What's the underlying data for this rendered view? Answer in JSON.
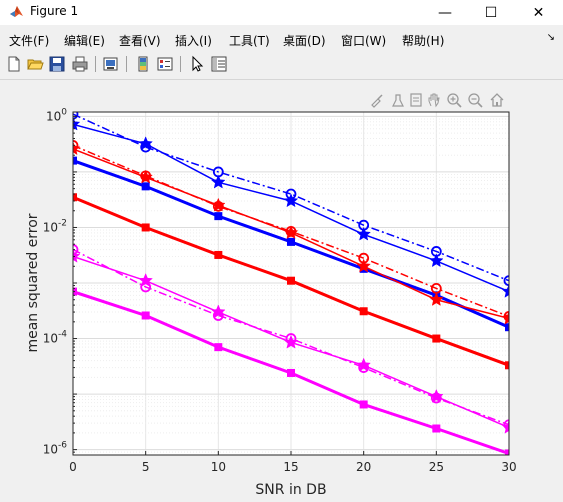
{
  "window": {
    "title": "Figure 1",
    "minimize": "—",
    "maximize": "☐",
    "close": "✕"
  },
  "menu": {
    "items": [
      "文件(F)",
      "编辑(E)",
      "查看(V)",
      "插入(I)",
      "工具(T)",
      "桌面(D)",
      "窗口(W)",
      "帮助(H)"
    ]
  },
  "toolbar": {
    "icons": [
      "new-figure-icon",
      "open-file-icon",
      "save-icon",
      "print-icon",
      "link-plot-icon",
      "colorbar-icon",
      "legend-icon",
      "pointer-icon",
      "property-inspector-icon"
    ]
  },
  "axes_toolbar": {
    "icons": [
      "brush-icon",
      "data-tips-icon",
      "export-icon",
      "pan-icon",
      "zoom-in-icon",
      "zoom-out-icon",
      "home-icon"
    ]
  },
  "colors": {
    "blue": "#0000ff",
    "red": "#ff0000",
    "magenta": "#ff00ff",
    "grid": "#e6e6e6",
    "axis": "#262626"
  },
  "chart_data": {
    "type": "line",
    "xlabel": "SNR in DB",
    "ylabel": "mean squared error",
    "x": [
      0,
      5,
      10,
      15,
      20,
      25,
      30
    ],
    "xticks": [
      "0",
      "5",
      "10",
      "15",
      "20",
      "25",
      "30"
    ],
    "xlim": [
      0,
      30
    ],
    "ylim": [
      8e-07,
      1.2
    ],
    "yscale": "log",
    "yticks": [
      {
        "value": 1,
        "base": "10",
        "exp": "0"
      },
      {
        "value": 0.01,
        "base": "10",
        "exp": "-2"
      },
      {
        "value": 0.0001,
        "base": "10",
        "exp": "-4"
      },
      {
        "value": 1e-06,
        "base": "10",
        "exp": "-6"
      }
    ],
    "grid": true,
    "series": [
      {
        "color": "#0000ff",
        "marker": "circle",
        "dash": "dashdot",
        "width": 1.5,
        "values": [
          1.1,
          0.28,
          0.1,
          0.04,
          0.011,
          0.0037,
          0.0011
        ]
      },
      {
        "color": "#0000ff",
        "marker": "star",
        "dash": "solid",
        "width": 1.5,
        "values": [
          0.72,
          0.32,
          0.065,
          0.03,
          0.0075,
          0.0025,
          0.0007
        ]
      },
      {
        "color": "#0000ff",
        "marker": "square",
        "dash": "solid",
        "width": 3,
        "values": [
          0.16,
          0.055,
          0.016,
          0.0055,
          0.0018,
          0.0006,
          0.00016
        ]
      },
      {
        "color": "#ff0000",
        "marker": "circle",
        "dash": "dashdot",
        "width": 1.5,
        "values": [
          0.3,
          0.085,
          0.024,
          0.0085,
          0.0028,
          0.0008,
          0.00025
        ]
      },
      {
        "color": "#ff0000",
        "marker": "star",
        "dash": "solid",
        "width": 1.5,
        "values": [
          0.26,
          0.08,
          0.025,
          0.008,
          0.002,
          0.0005,
          0.00023
        ]
      },
      {
        "color": "#ff0000",
        "marker": "square",
        "dash": "solid",
        "width": 3,
        "values": [
          0.035,
          0.01,
          0.0032,
          0.0011,
          0.00031,
          0.0001,
          3.3e-05
        ]
      },
      {
        "color": "#ff00ff",
        "marker": "circle",
        "dash": "dashdot",
        "width": 1.5,
        "values": [
          0.004,
          0.00085,
          0.00026,
          0.0001,
          3e-05,
          8.5e-06,
          2.8e-06
        ]
      },
      {
        "color": "#ff00ff",
        "marker": "star",
        "dash": "solid",
        "width": 1.5,
        "values": [
          0.003,
          0.0011,
          0.0003,
          8.5e-05,
          3.3e-05,
          9e-06,
          2.5e-06
        ]
      },
      {
        "color": "#ff00ff",
        "marker": "square",
        "dash": "solid",
        "width": 3,
        "values": [
          0.0007,
          0.00026,
          7e-05,
          2.4e-05,
          6.5e-06,
          2.4e-06,
          8.5e-07
        ]
      }
    ]
  }
}
